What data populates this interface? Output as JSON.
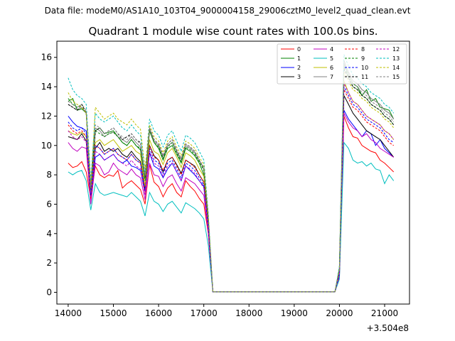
{
  "chart_data": {
    "type": "line",
    "suptitle": "Data file: modeM0/AS1A10_103T04_9000004158_29006cztM0_level2_quad_clean.evt",
    "title": "Quadrant 1 module wise count rates with 100.0s bins.",
    "xlabel": "",
    "ylabel": "",
    "x_offset_label": "+3.504e8",
    "xlim": [
      13750,
      21550
    ],
    "ylim": [
      -0.8,
      17.1
    ],
    "xticks": [
      14000,
      15000,
      16000,
      17000,
      18000,
      19000,
      20000,
      21000
    ],
    "yticks": [
      0,
      2,
      4,
      6,
      8,
      10,
      12,
      14,
      16
    ],
    "x": [
      14000,
      14100,
      14200,
      14300,
      14400,
      14500,
      14600,
      14700,
      14800,
      14900,
      15000,
      15100,
      15200,
      15300,
      15400,
      15500,
      15600,
      15700,
      15800,
      15900,
      16000,
      16100,
      16200,
      16300,
      16400,
      16500,
      16600,
      16700,
      16800,
      16900,
      17000,
      17100,
      17200,
      17300,
      17400,
      17500,
      17600,
      17700,
      17800,
      17900,
      18000,
      18100,
      18200,
      18300,
      18400,
      18500,
      18600,
      18700,
      18800,
      18900,
      19000,
      19100,
      19200,
      19300,
      19400,
      19500,
      19600,
      19700,
      19800,
      19900,
      20000,
      20100,
      20200,
      20300,
      20400,
      20500,
      20600,
      20700,
      20800,
      20900,
      21000,
      21100,
      21200
    ],
    "gap_start_index": 32,
    "gap_end_index": 59,
    "series": [
      {
        "name": "0",
        "color": "#ff0000",
        "dashed": false,
        "offset": 8.3,
        "pre": [
          8.8,
          8.5,
          8.6,
          8.9,
          8.2,
          6.4,
          8.6,
          8.0,
          7.8,
          8.0,
          7.9,
          8.3,
          7.1,
          7.4,
          7.6,
          7.3,
          7.0,
          6.0,
          8.7,
          7.5,
          7.2,
          6.5,
          7.1,
          7.4,
          6.8,
          6.5,
          7.6,
          7.2,
          6.9,
          6.4,
          6.0,
          4.0
        ],
        "post": [
          1.0,
          12.0,
          11.2,
          10.6,
          10.5,
          10.0,
          9.8,
          9.6,
          9.5,
          9.0,
          8.8,
          8.5,
          8.2,
          8.0,
          7.6
        ]
      },
      {
        "name": "1",
        "color": "#008000",
        "dashed": false,
        "offset": 8.0,
        "pre": [
          13.0,
          13.2,
          12.4,
          12.5,
          12.2,
          7.0,
          11.0,
          11.2,
          10.8,
          10.9,
          11.0,
          10.6,
          10.2,
          10.0,
          10.4,
          10.0,
          9.7,
          7.7,
          11.0,
          10.2,
          9.8,
          9.0,
          9.8,
          10.0,
          9.4,
          8.8,
          9.8,
          9.6,
          9.3,
          8.8,
          8.0,
          4.8
        ],
        "post": [
          1.6,
          15.6,
          14.8,
          14.2,
          14.0,
          13.4,
          13.8,
          13.0,
          13.2,
          12.6,
          12.5,
          12.4,
          11.8,
          11.6,
          11.0
        ]
      },
      {
        "name": "2",
        "color": "#0000ff",
        "dashed": false,
        "offset": 8.6,
        "pre": [
          12.0,
          11.6,
          11.3,
          11.2,
          11.0,
          6.2,
          9.2,
          9.4,
          9.0,
          9.2,
          9.4,
          9.0,
          8.8,
          9.0,
          8.6,
          8.5,
          8.3,
          6.8,
          9.5,
          8.6,
          8.4,
          7.8,
          8.4,
          8.8,
          8.2,
          7.6,
          8.6,
          8.3,
          8.0,
          7.6,
          7.2,
          4.4
        ],
        "post": [
          1.3,
          12.4,
          11.8,
          11.4,
          11.0,
          10.6,
          11.0,
          10.8,
          10.0,
          10.4,
          9.8,
          9.5,
          9.2,
          9.0,
          8.4
        ]
      },
      {
        "name": "3",
        "color": "#000000",
        "dashed": false,
        "offset": 9.1,
        "pre": [
          10.6,
          10.5,
          10.4,
          10.8,
          10.3,
          6.2,
          9.8,
          10.2,
          9.6,
          9.8,
          9.6,
          9.8,
          9.4,
          9.2,
          9.6,
          9.2,
          8.9,
          7.0,
          10.0,
          9.3,
          9.0,
          8.2,
          9.0,
          9.2,
          8.7,
          8.1,
          9.0,
          8.8,
          8.6,
          8.0,
          7.5,
          4.5
        ],
        "post": [
          1.2,
          13.4,
          12.8,
          12.2,
          11.8,
          11.4,
          11.0,
          10.8,
          10.6,
          10.4,
          10.0,
          9.6,
          9.2,
          8.8,
          8.4
        ]
      },
      {
        "name": "4",
        "color": "#bf00bf",
        "dashed": false,
        "offset": 8.3,
        "pre": [
          10.2,
          9.8,
          9.6,
          9.9,
          9.8,
          6.0,
          8.8,
          8.6,
          8.0,
          8.2,
          8.8,
          8.4,
          8.2,
          8.0,
          8.4,
          8.0,
          7.8,
          6.3,
          8.8,
          8.0,
          7.9,
          7.2,
          7.8,
          8.0,
          7.4,
          6.9,
          7.8,
          7.6,
          7.4,
          7.0,
          6.6,
          4.1
        ],
        "post": [
          1.0,
          12.2,
          11.6,
          11.2,
          11.0,
          10.6,
          10.8,
          10.4,
          10.2,
          9.8,
          9.6,
          9.4,
          9.2,
          9.0,
          8.7
        ]
      },
      {
        "name": "5",
        "color": "#00bfbf",
        "dashed": false,
        "offset": 8.5,
        "pre": [
          8.2,
          8.0,
          8.2,
          8.3,
          7.6,
          5.6,
          7.4,
          6.8,
          6.6,
          6.7,
          6.8,
          6.7,
          6.6,
          6.5,
          6.8,
          6.5,
          6.2,
          5.2,
          6.8,
          6.2,
          6.0,
          5.5,
          6.0,
          6.2,
          5.8,
          5.4,
          6.1,
          5.9,
          5.7,
          5.4,
          5.0,
          3.2
        ],
        "post": [
          0.9,
          10.2,
          9.8,
          9.0,
          8.8,
          8.9,
          8.6,
          8.8,
          8.4,
          8.3,
          7.4,
          8.0,
          7.6,
          7.2,
          6.9
        ]
      },
      {
        "name": "6",
        "color": "#bfbf00",
        "dashed": false,
        "offset": 8.6,
        "pre": [
          11.0,
          10.8,
          10.7,
          10.9,
          10.6,
          6.4,
          10.2,
          10.4,
          10.0,
          10.2,
          10.4,
          10.0,
          9.6,
          9.8,
          10.0,
          9.6,
          9.4,
          7.2,
          10.4,
          9.6,
          9.4,
          8.7,
          9.5,
          9.8,
          9.2,
          8.5,
          9.5,
          9.3,
          9.0,
          8.4,
          7.9,
          4.7
        ],
        "post": [
          1.3,
          14.4,
          13.6,
          13.0,
          12.8,
          12.4,
          12.0,
          11.8,
          11.6,
          11.4,
          11.0,
          10.8,
          10.4,
          10.2,
          9.8
        ]
      },
      {
        "name": "7",
        "color": "#808080",
        "dashed": false,
        "offset": 9.2,
        "pre": [
          12.8,
          12.6,
          12.4,
          12.6,
          12.2,
          7.1,
          11.2,
          11.0,
          10.6,
          10.8,
          10.9,
          10.6,
          10.4,
          10.2,
          10.6,
          10.2,
          9.9,
          7.8,
          11.1,
          10.3,
          10.0,
          9.2,
          10.0,
          10.2,
          9.6,
          9.0,
          10.0,
          9.8,
          9.5,
          9.0,
          8.4,
          5.0
        ],
        "post": [
          1.5,
          15.8,
          15.0,
          14.4,
          14.2,
          13.8,
          13.6,
          13.2,
          13.0,
          12.8,
          12.4,
          12.2,
          11.8,
          11.4,
          11.0
        ]
      },
      {
        "name": "8",
        "color": "#ff0000",
        "dashed": true,
        "offset": 8.9,
        "pre": [
          11.4,
          11.0,
          10.8,
          11.0,
          10.6,
          6.3,
          10.0,
          9.8,
          9.4,
          9.6,
          9.8,
          9.4,
          9.2,
          9.0,
          9.4,
          9.0,
          8.8,
          6.8,
          10.0,
          9.2,
          9.0,
          8.3,
          9.0,
          9.2,
          8.6,
          8.0,
          9.0,
          8.8,
          8.5,
          8.0,
          7.5,
          4.5
        ],
        "post": [
          1.2,
          13.8,
          13.2,
          12.6,
          12.4,
          12.0,
          11.6,
          11.4,
          11.2,
          11.0,
          10.6,
          10.2,
          10.0,
          9.8,
          9.4
        ]
      },
      {
        "name": "9",
        "color": "#008000",
        "dashed": true,
        "offset": 8.0,
        "pre": [
          13.2,
          12.8,
          12.6,
          12.8,
          12.2,
          7.0,
          11.0,
          10.8,
          10.6,
          10.8,
          10.9,
          10.6,
          10.2,
          10.0,
          10.4,
          10.0,
          9.8,
          7.6,
          11.0,
          10.2,
          9.9,
          9.1,
          9.9,
          10.2,
          9.5,
          8.9,
          9.9,
          9.7,
          9.4,
          8.9,
          8.3,
          4.9
        ],
        "post": [
          1.5,
          15.4,
          14.6,
          14.0,
          13.8,
          13.4,
          13.2,
          12.8,
          12.6,
          12.4,
          12.0,
          11.8,
          11.4,
          11.0,
          10.6
        ]
      },
      {
        "name": "10",
        "color": "#0000ff",
        "dashed": true,
        "offset": 8.6,
        "pre": [
          11.6,
          11.2,
          11.0,
          11.2,
          10.8,
          6.6,
          10.0,
          9.8,
          9.4,
          9.6,
          9.8,
          9.4,
          9.2,
          9.0,
          9.4,
          9.0,
          8.8,
          6.9,
          9.8,
          9.0,
          8.8,
          8.1,
          8.8,
          9.0,
          8.4,
          7.8,
          8.8,
          8.6,
          8.3,
          7.8,
          7.3,
          4.4
        ],
        "post": [
          1.2,
          14.0,
          13.4,
          12.8,
          12.6,
          12.2,
          11.8,
          11.6,
          11.4,
          11.2,
          10.8,
          10.4,
          10.2,
          9.8,
          9.4
        ]
      },
      {
        "name": "11",
        "color": "#000000",
        "dashed": true,
        "offset": 9.1,
        "pre": [
          12.8,
          12.6,
          12.4,
          12.8,
          12.2,
          7.2,
          11.0,
          11.2,
          10.8,
          11.0,
          11.2,
          10.8,
          10.4,
          10.6,
          10.8,
          10.4,
          10.2,
          7.8,
          11.2,
          10.4,
          10.1,
          9.3,
          10.1,
          10.4,
          9.7,
          9.1,
          10.1,
          9.9,
          9.6,
          9.0,
          8.5,
          5.1
        ],
        "post": [
          1.6,
          15.2,
          14.6,
          14.0,
          13.8,
          13.4,
          13.2,
          12.8,
          12.6,
          12.4,
          12.0,
          11.8,
          11.4,
          11.2,
          10.8
        ]
      },
      {
        "name": "12",
        "color": "#bf00bf",
        "dashed": true,
        "offset": 8.3,
        "pre": [
          11.0,
          10.6,
          10.4,
          10.6,
          10.2,
          6.2,
          9.6,
          9.4,
          9.0,
          9.2,
          9.4,
          9.0,
          8.8,
          8.6,
          9.0,
          8.6,
          8.4,
          6.6,
          9.6,
          8.8,
          8.6,
          7.9,
          8.6,
          8.8,
          8.2,
          7.6,
          8.6,
          8.4,
          8.1,
          7.6,
          7.1,
          4.3
        ],
        "post": [
          1.3,
          14.2,
          13.6,
          13.0,
          12.8,
          12.4,
          12.0,
          11.8,
          11.6,
          11.4,
          11.0,
          10.8,
          10.4,
          10.2,
          9.8
        ]
      },
      {
        "name": "13",
        "color": "#00bfbf",
        "dashed": true,
        "offset": 8.5,
        "pre": [
          14.6,
          13.8,
          13.4,
          13.2,
          12.8,
          7.6,
          12.2,
          11.8,
          11.6,
          11.8,
          12.0,
          11.6,
          11.2,
          11.0,
          11.4,
          11.0,
          10.7,
          8.2,
          11.8,
          11.0,
          10.7,
          9.9,
          10.7,
          11.0,
          10.3,
          9.6,
          10.7,
          10.5,
          10.2,
          9.6,
          9.0,
          5.4
        ],
        "post": [
          1.8,
          16.2,
          15.4,
          14.8,
          14.6,
          14.2,
          14.0,
          13.6,
          13.4,
          13.2,
          12.8,
          12.6,
          12.2,
          11.8,
          11.4
        ]
      },
      {
        "name": "14",
        "color": "#bfbf00",
        "dashed": true,
        "offset": 8.6,
        "pre": [
          13.6,
          13.0,
          12.8,
          12.6,
          12.2,
          7.2,
          12.6,
          12.2,
          11.8,
          12.0,
          12.2,
          11.8,
          11.6,
          11.4,
          11.8,
          11.4,
          11.1,
          8.4,
          11.4,
          10.6,
          10.3,
          9.5,
          10.3,
          10.6,
          9.9,
          9.3,
          10.3,
          10.1,
          9.8,
          9.2,
          8.7,
          5.2
        ],
        "post": [
          1.6,
          15.0,
          14.4,
          13.8,
          13.6,
          13.2,
          13.0,
          12.6,
          12.4,
          12.2,
          11.8,
          11.6,
          11.2,
          10.8,
          10.4
        ]
      },
      {
        "name": "15",
        "color": "#808080",
        "dashed": true,
        "offset": 9.2,
        "pre": [
          13.0,
          12.8,
          12.6,
          12.8,
          12.4,
          7.1,
          11.4,
          11.2,
          10.8,
          11.0,
          11.2,
          10.8,
          10.6,
          10.4,
          10.8,
          10.4,
          10.1,
          7.9,
          11.2,
          10.4,
          10.1,
          9.3,
          10.1,
          10.4,
          9.7,
          9.1,
          10.1,
          9.9,
          9.6,
          9.0,
          8.5,
          5.1
        ],
        "post": [
          1.5,
          15.6,
          14.8,
          14.2,
          14.0,
          13.6,
          13.4,
          13.0,
          12.8,
          12.6,
          12.2,
          12.0,
          11.6,
          11.2,
          10.8
        ]
      }
    ]
  }
}
